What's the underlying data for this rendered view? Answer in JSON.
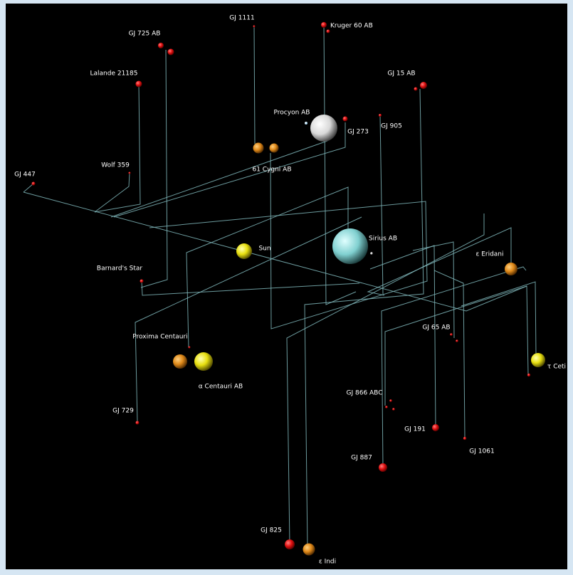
{
  "stars": [
    {
      "label": "GJ 1111"
    },
    {
      "label": "Kruger 60 AB"
    },
    {
      "label": "GJ 725 AB"
    },
    {
      "label": "GJ 15 AB"
    },
    {
      "label": "Lalande 21185"
    },
    {
      "label": "Procyon AB"
    },
    {
      "label": "GJ 273"
    },
    {
      "label": "GJ 905"
    },
    {
      "label": "61 Cygni AB"
    },
    {
      "label": "Wolf 359"
    },
    {
      "label": "GJ 447"
    },
    {
      "label": "Sun"
    },
    {
      "label": "Sirius AB"
    },
    {
      "label": "ε Eridani"
    },
    {
      "label": "Barnard's Star"
    },
    {
      "label": "Proxima Centauri"
    },
    {
      "label": "α Centauri AB"
    },
    {
      "label": "GJ 65 AB"
    },
    {
      "label": "τ Ceti"
    },
    {
      "label": "GJ 866 ABC"
    },
    {
      "label": "GJ 729"
    },
    {
      "label": "GJ 191"
    },
    {
      "label": "GJ 1061"
    },
    {
      "label": "GJ 887"
    },
    {
      "label": "GJ 825"
    },
    {
      "label": "ε Indi"
    }
  ]
}
